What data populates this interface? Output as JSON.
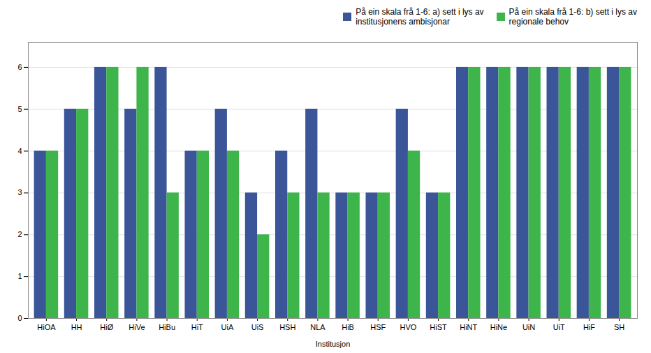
{
  "chart_data": {
    "type": "bar",
    "xlabel": "Institusjon",
    "categories": [
      "HiOA",
      "HH",
      "HiØ",
      "HiVe",
      "HiBu",
      "HiT",
      "UiA",
      "UiS",
      "HSH",
      "NLA",
      "HiB",
      "HSF",
      "HVO",
      "HiST",
      "HiNT",
      "HiNe",
      "UiN",
      "UiT",
      "HiF",
      "SH"
    ],
    "series": [
      {
        "name": "På ein skala frå 1-6: a) sett i lys av\ninstitusjonens ambisjonar",
        "color": "#3a5699",
        "values": [
          4,
          5,
          6,
          5,
          6,
          4,
          5,
          3,
          4,
          5,
          3,
          3,
          5,
          3,
          6,
          6,
          6,
          6,
          6,
          6
        ]
      },
      {
        "name": "På ein skala frå 1-6: b) sett i lys av\nregionale behov",
        "color": "#3db54a",
        "values": [
          4,
          5,
          6,
          6,
          3,
          4,
          4,
          2,
          3,
          3,
          3,
          3,
          4,
          3,
          6,
          6,
          6,
          6,
          6,
          6
        ]
      }
    ],
    "ylim": [
      0,
      6.6
    ],
    "yticks": [
      0,
      1,
      2,
      3,
      4,
      5,
      6
    ],
    "grid": true,
    "legend": "upper right"
  }
}
